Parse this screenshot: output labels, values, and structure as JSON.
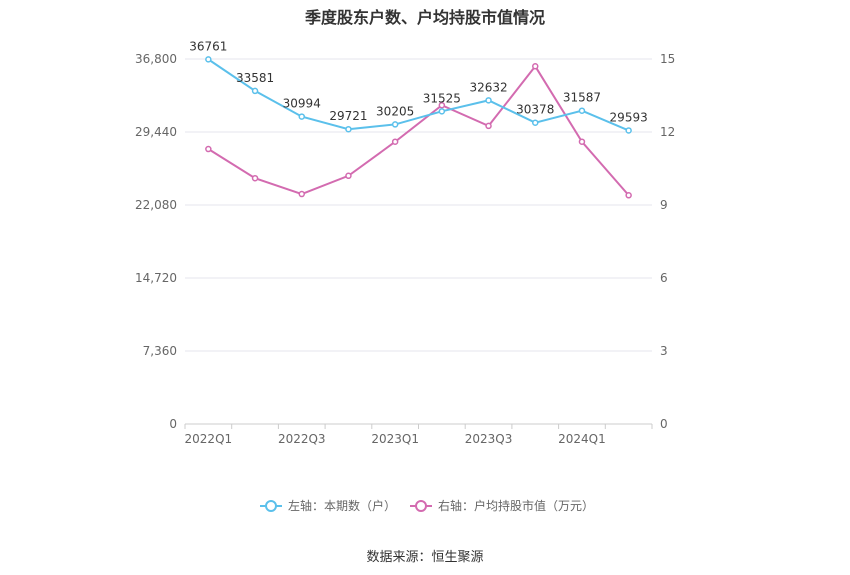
{
  "chart_data": {
    "type": "line",
    "title": "季度股东户数、户均持股市值情况",
    "source": "数据来源：恒生聚源",
    "x": [
      "2022Q1",
      "2022Q2",
      "2022Q3",
      "2022Q4",
      "2023Q1",
      "2023Q2",
      "2023Q3",
      "2023Q4",
      "2024Q1",
      "2024Q2"
    ],
    "x_tick_labels": [
      "2022Q1",
      "2022Q3",
      "2023Q1",
      "2023Q3",
      "2024Q1"
    ],
    "left_axis": {
      "ylim": [
        0,
        36800
      ],
      "ticks": [
        "0",
        "7,360",
        "14,720",
        "22,080",
        "29,440",
        "36,800"
      ]
    },
    "right_axis": {
      "ylim": [
        0,
        15
      ],
      "ticks": [
        "0",
        "3",
        "6",
        "9",
        "12",
        "15"
      ]
    },
    "grid": true,
    "legend_position": "bottom",
    "series": [
      {
        "name": "左轴：本期数（户）",
        "axis": "left",
        "color": "#5bc0eb",
        "values": [
          36761,
          33581,
          30994,
          29721,
          30205,
          31525,
          32632,
          30378,
          31587,
          29593
        ],
        "labels": [
          "36761",
          "33581",
          "30994",
          "29721",
          "30205",
          "31525",
          "32632",
          "30378",
          "31587",
          "29593"
        ]
      },
      {
        "name": "右轴：户均持股市值（万元）",
        "axis": "right",
        "color": "#d36bb0",
        "values": [
          11.3,
          10.1,
          9.45,
          10.2,
          11.6,
          13.1,
          12.25,
          14.7,
          11.6,
          9.4
        ]
      }
    ]
  }
}
